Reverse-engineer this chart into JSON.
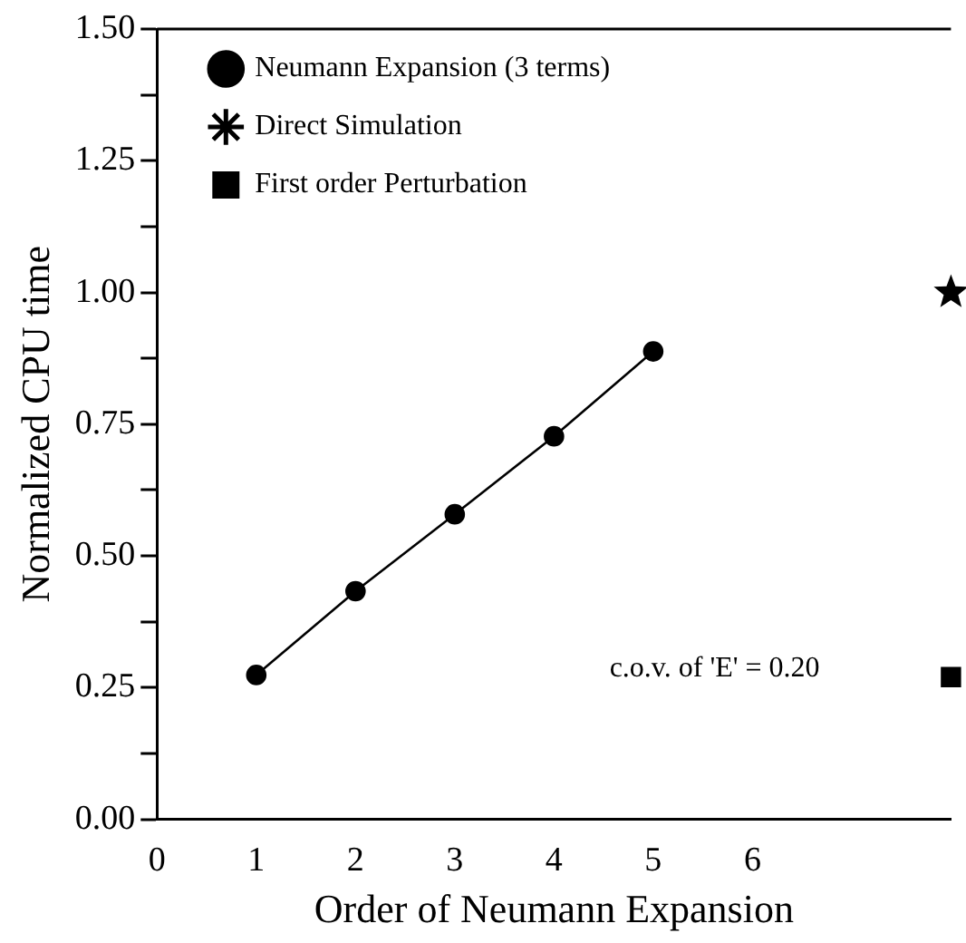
{
  "chart_data": {
    "type": "line",
    "xlabel": "Order of Neumann Expansion",
    "ylabel": "Normalized CPU time",
    "xlim": [
      0,
      8
    ],
    "xticks": [
      0,
      1,
      2,
      3,
      4,
      5,
      6
    ],
    "ylim": [
      0,
      1.5
    ],
    "yticks": [
      {
        "value": 0,
        "label": "0.00"
      },
      {
        "value": 0.125,
        "label": null
      },
      0.25,
      {
        "value": 0.375,
        "label": null
      },
      {
        "value": 0.5,
        "label": "0.50"
      },
      {
        "value": 0.625,
        "label": null
      },
      0.75,
      {
        "value": 0.875,
        "label": null
      },
      {
        "value": 1,
        "label": "1.00"
      },
      {
        "value": 1.125,
        "label": null
      },
      1.25,
      {
        "value": 1.375,
        "label": null
      },
      {
        "value": 1.5,
        "label": "1.50"
      }
    ],
    "grid": false,
    "legend": "top left",
    "line_style": "solid",
    "series": [
      {
        "name": "Neumann Expansion (3 terms)",
        "color": "#000000",
        "marker": "circle",
        "x": [
          1,
          2,
          3,
          4,
          5
        ],
        "values": [
          0.274,
          0.433,
          0.579,
          0.727,
          0.888
        ]
      },
      {
        "name": "Direct Simulation",
        "color": "#000000",
        "marker": "star",
        "x": [
          8
        ],
        "values": [
          1
        ]
      },
      {
        "name": "First order Perturbation",
        "color": "#000000",
        "marker": "square",
        "x": [
          8
        ],
        "values": [
          0.27
        ]
      }
    ],
    "annotations": [
      "c.o.v. of 'E' = 0.20"
    ]
  }
}
